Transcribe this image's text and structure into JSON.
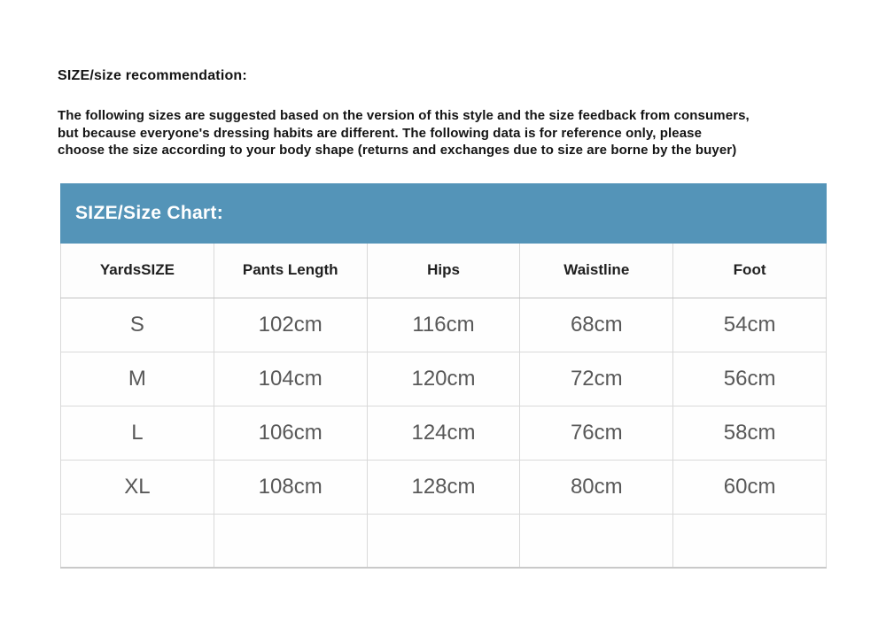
{
  "heading": "SIZE/size recommendation:",
  "description": "The following sizes are suggested based on the version of this style and the size feedback from consumers,\nbut because everyone's dressing habits are different. The following data is for reference only, please\nchoose the size according to your body shape (returns and exchanges due to size are borne by the buyer)",
  "size_chart": {
    "title": "SIZE/Size Chart:",
    "accent_color": "#5494b8",
    "border_color": "#d9d9d9",
    "columns": [
      "YardsSIZE",
      "Pants Length",
      "Hips",
      "Waistline",
      "Foot"
    ],
    "rows": [
      {
        "size": "S",
        "values": [
          "102cm",
          "116cm",
          "68cm",
          "54cm"
        ]
      },
      {
        "size": "M",
        "values": [
          "104cm",
          "120cm",
          "72cm",
          "56cm"
        ]
      },
      {
        "size": "L",
        "values": [
          "106cm",
          "124cm",
          "76cm",
          "58cm"
        ]
      },
      {
        "size": "XL",
        "values": [
          "108cm",
          "128cm",
          "80cm",
          "60cm"
        ]
      }
    ]
  },
  "chart_data": {
    "type": "table",
    "title": "SIZE/Size Chart:",
    "columns": [
      "YardsSIZE",
      "Pants Length",
      "Hips",
      "Waistline",
      "Foot"
    ],
    "rows": [
      [
        "S",
        "102cm",
        "116cm",
        "68cm",
        "54cm"
      ],
      [
        "M",
        "104cm",
        "120cm",
        "72cm",
        "56cm"
      ],
      [
        "L",
        "106cm",
        "124cm",
        "76cm",
        "58cm"
      ],
      [
        "XL",
        "108cm",
        "128cm",
        "80cm",
        "60cm"
      ]
    ]
  }
}
